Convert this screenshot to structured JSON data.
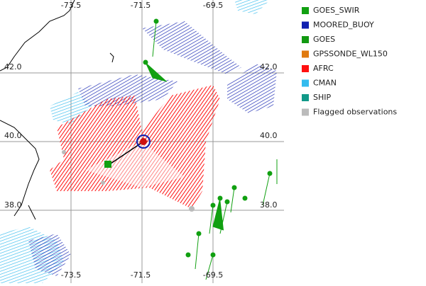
{
  "map": {
    "lon_labels_top": [
      "-73.5",
      "-71.5",
      "-69.5"
    ],
    "lon_labels_bottom": [
      "-73.5",
      "-71.5",
      "-69.5"
    ],
    "lat_labels_left": [
      "42.0",
      "40.0",
      "38.0"
    ],
    "lat_labels_right": [
      "42.0",
      "40.0",
      "38.0"
    ]
  },
  "legend": [
    {
      "label": "GOES_SWIR",
      "color": "#11a011"
    },
    {
      "label": "MOORED_BUOY",
      "color": "#1020b0"
    },
    {
      "label": "GOES",
      "color": "#119911"
    },
    {
      "label": "GPSSONDE_WL150",
      "color": "#e07a10"
    },
    {
      "label": "AFRC",
      "color": "#ff1010"
    },
    {
      "label": "CMAN",
      "color": "#33bbee"
    },
    {
      "label": "SHIP",
      "color": "#119988"
    },
    {
      "label": "Flagged observations",
      "color": "#bbbbbb"
    }
  ]
}
